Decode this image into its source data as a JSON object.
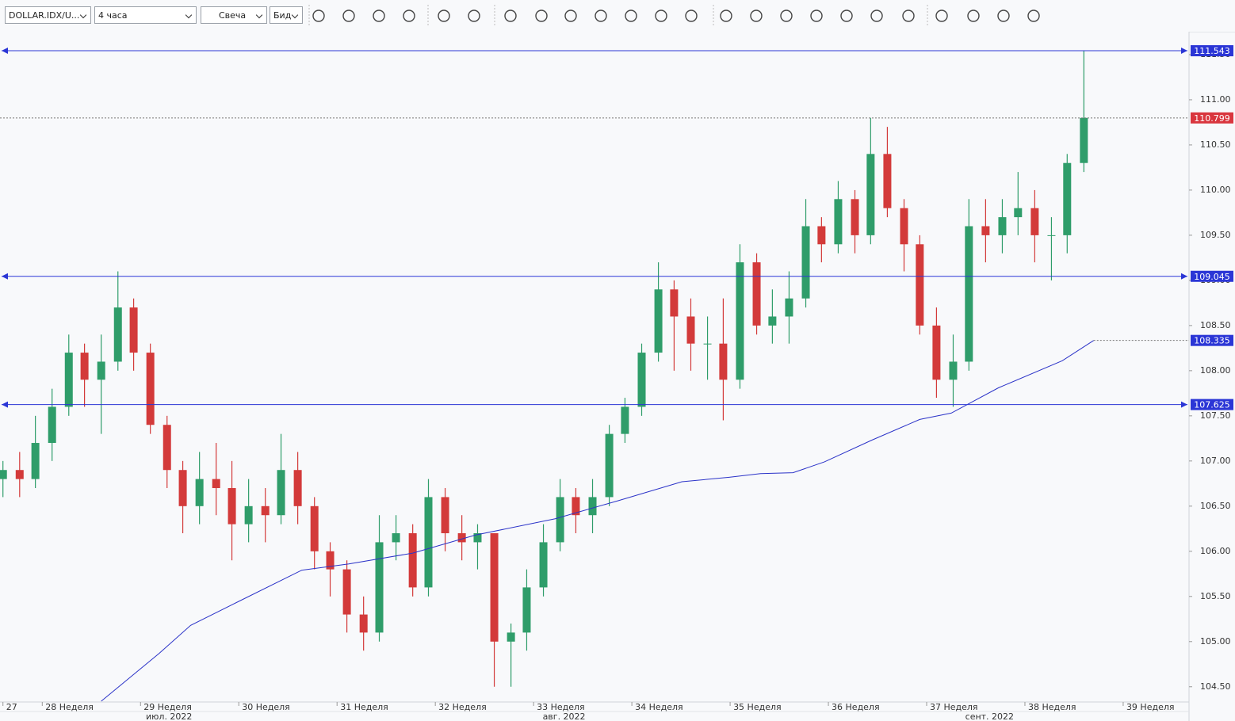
{
  "toolbar": {
    "symbol": "DOLLAR.IDX/U...",
    "timeframe": "4 часа",
    "chart_style": "Свеча",
    "price_side": "Бид"
  },
  "chart_data": {
    "type": "candlestick",
    "up_color": "#2f9d6a",
    "down_color": "#d33a3a",
    "ma_color": "#2b33c8",
    "level_color": "#2b36d6",
    "price_color": "#d9363e",
    "xlim": [
      27.57,
      39.67
    ],
    "xticks": [
      {
        "value": 27.6,
        "label": "27"
      },
      {
        "value": 28,
        "label": "28 Неделя"
      },
      {
        "value": 29,
        "label": "29 Неделя"
      },
      {
        "value": 30,
        "label": "30 Неделя"
      },
      {
        "value": 31,
        "label": "31 Неделя"
      },
      {
        "value": 32,
        "label": "32 Неделя"
      },
      {
        "value": 33,
        "label": "33 Неделя"
      },
      {
        "value": 34,
        "label": "34 Неделя"
      },
      {
        "value": 35,
        "label": "35 Неделя"
      },
      {
        "value": 36,
        "label": "36 Неделя"
      },
      {
        "value": 37,
        "label": "37 Неделя"
      },
      {
        "value": 38,
        "label": "38 Неделя"
      },
      {
        "value": 39,
        "label": "39 Неделя"
      }
    ],
    "months": [
      {
        "label": "июл. 2022",
        "x": 29.29
      },
      {
        "label": "авг. 2022",
        "x": 33.31
      },
      {
        "label": "сент. 2022",
        "x": 37.64
      }
    ],
    "ylim": [
      104.34,
      111.754
    ],
    "yticks": [
      {
        "value": 104.5,
        "label": "104.50"
      },
      {
        "value": 105,
        "label": "105.00"
      },
      {
        "value": 105.5,
        "label": "105.50"
      },
      {
        "value": 106,
        "label": "106.00"
      },
      {
        "value": 106.5,
        "label": "106.50"
      },
      {
        "value": 107,
        "label": "107.00"
      },
      {
        "value": 107.5,
        "label": "107.50"
      },
      {
        "value": 108,
        "label": "108.00"
      },
      {
        "value": 108.5,
        "label": "108.50"
      },
      {
        "value": 109,
        "label": "109.00"
      },
      {
        "value": 109.5,
        "label": "109.50"
      },
      {
        "value": 110,
        "label": "110.00"
      },
      {
        "value": 110.5,
        "label": "110.50"
      },
      {
        "value": 111,
        "label": "111.00"
      },
      {
        "value": 111.5,
        "label": "111.50"
      }
    ],
    "x": [
      27.6,
      27.77,
      27.93,
      28.1,
      28.27,
      28.43,
      28.6,
      28.77,
      28.93,
      29.1,
      29.27,
      29.43,
      29.6,
      29.77,
      29.93,
      30.1,
      30.27,
      30.43,
      30.6,
      30.77,
      30.93,
      31.1,
      31.27,
      31.43,
      31.6,
      31.77,
      31.93,
      32.1,
      32.27,
      32.43,
      32.6,
      32.77,
      32.93,
      33.1,
      33.27,
      33.43,
      33.6,
      33.77,
      33.93,
      34.1,
      34.27,
      34.43,
      34.6,
      34.77,
      34.93,
      35.1,
      35.27,
      35.43,
      35.6,
      35.77,
      35.93,
      36.1,
      36.27,
      36.43,
      36.6,
      36.77,
      36.93,
      37.1,
      37.27,
      37.43,
      37.6,
      37.77,
      37.93,
      38.1,
      38.27,
      38.43,
      38.6
    ],
    "candles": [
      [
        106.8,
        107.0,
        106.6,
        106.9
      ],
      [
        106.9,
        107.1,
        106.6,
        106.8
      ],
      [
        106.8,
        107.5,
        106.7,
        107.2
      ],
      [
        107.2,
        107.8,
        107.0,
        107.6
      ],
      [
        107.6,
        108.4,
        107.5,
        108.2
      ],
      [
        108.2,
        108.3,
        107.6,
        107.9
      ],
      [
        107.9,
        108.4,
        107.3,
        108.1
      ],
      [
        108.1,
        109.1,
        108.0,
        108.7
      ],
      [
        108.7,
        108.8,
        108.0,
        108.2
      ],
      [
        108.2,
        108.3,
        107.3,
        107.4
      ],
      [
        107.4,
        107.5,
        106.7,
        106.9
      ],
      [
        106.9,
        107.0,
        106.2,
        106.5
      ],
      [
        106.5,
        107.1,
        106.3,
        106.8
      ],
      [
        106.8,
        107.2,
        106.4,
        106.7
      ],
      [
        106.7,
        107.0,
        105.9,
        106.3
      ],
      [
        106.3,
        106.8,
        106.1,
        106.5
      ],
      [
        106.5,
        106.7,
        106.1,
        106.4
      ],
      [
        106.4,
        107.3,
        106.3,
        106.9
      ],
      [
        106.9,
        107.1,
        106.3,
        106.5
      ],
      [
        106.5,
        106.6,
        105.8,
        106.0
      ],
      [
        106.0,
        106.1,
        105.5,
        105.8
      ],
      [
        105.8,
        105.9,
        105.1,
        105.3
      ],
      [
        105.3,
        105.5,
        104.9,
        105.1
      ],
      [
        105.1,
        106.4,
        105.0,
        106.1
      ],
      [
        106.1,
        106.4,
        105.9,
        106.2
      ],
      [
        106.2,
        106.3,
        105.5,
        105.6
      ],
      [
        105.6,
        106.8,
        105.5,
        106.6
      ],
      [
        106.6,
        106.7,
        106.0,
        106.2
      ],
      [
        106.2,
        106.4,
        105.9,
        106.1
      ],
      [
        106.1,
        106.3,
        105.8,
        106.2
      ],
      [
        106.2,
        106.2,
        104.5,
        105.0
      ],
      [
        105.0,
        105.2,
        104.5,
        105.1
      ],
      [
        105.1,
        105.8,
        104.9,
        105.6
      ],
      [
        105.6,
        106.3,
        105.5,
        106.1
      ],
      [
        106.1,
        106.8,
        106.0,
        106.6
      ],
      [
        106.6,
        106.7,
        106.2,
        106.4
      ],
      [
        106.4,
        106.8,
        106.2,
        106.6
      ],
      [
        106.6,
        107.4,
        106.5,
        107.3
      ],
      [
        107.3,
        107.7,
        107.2,
        107.6
      ],
      [
        107.6,
        108.3,
        107.5,
        108.2
      ],
      [
        108.2,
        109.2,
        108.1,
        108.9
      ],
      [
        108.9,
        109.0,
        108.0,
        108.6
      ],
      [
        108.6,
        108.8,
        108.0,
        108.3
      ],
      [
        108.3,
        108.6,
        107.9,
        108.3
      ],
      [
        108.3,
        108.8,
        107.45,
        107.9
      ],
      [
        107.9,
        109.4,
        107.8,
        109.2
      ],
      [
        109.2,
        109.3,
        108.4,
        108.5
      ],
      [
        108.5,
        108.9,
        108.3,
        108.6
      ],
      [
        108.6,
        109.1,
        108.3,
        108.8
      ],
      [
        108.8,
        109.9,
        108.7,
        109.6
      ],
      [
        109.6,
        109.7,
        109.2,
        109.4
      ],
      [
        109.4,
        110.1,
        109.3,
        109.9
      ],
      [
        109.9,
        110.0,
        109.3,
        109.5
      ],
      [
        109.5,
        110.8,
        109.4,
        110.4
      ],
      [
        110.4,
        110.7,
        109.7,
        109.8
      ],
      [
        109.8,
        109.9,
        109.1,
        109.4
      ],
      [
        109.4,
        109.5,
        108.4,
        108.5
      ],
      [
        108.5,
        108.7,
        107.7,
        107.9
      ],
      [
        107.9,
        108.4,
        107.6,
        108.1
      ],
      [
        108.1,
        109.9,
        108.0,
        109.6
      ],
      [
        109.6,
        109.9,
        109.2,
        109.5
      ],
      [
        109.5,
        109.9,
        109.3,
        109.7
      ],
      [
        109.7,
        110.2,
        109.5,
        109.8
      ],
      [
        109.8,
        110.0,
        109.2,
        109.5
      ],
      [
        109.5,
        109.7,
        109.0,
        109.5
      ],
      [
        109.5,
        110.4,
        109.3,
        110.3
      ],
      [
        110.3,
        111.543,
        110.2,
        110.8
      ]
    ],
    "ma": {
      "x": [
        28.6,
        29.19,
        29.51,
        29.99,
        30.64,
        31.12,
        31.77,
        32.41,
        33.22,
        33.86,
        34.51,
        34.99,
        35.31,
        35.64,
        35.96,
        36.44,
        36.93,
        37.25,
        37.73,
        38.38,
        38.7
      ],
      "values": [
        104.34,
        104.87,
        105.18,
        105.44,
        105.79,
        105.86,
        105.98,
        106.18,
        106.36,
        106.56,
        106.77,
        106.82,
        106.86,
        106.87,
        106.99,
        107.23,
        107.46,
        107.53,
        107.81,
        108.11,
        108.335
      ]
    },
    "levels": [
      111.543,
      109.045,
      107.625
    ],
    "last_price": 110.799,
    "ma_last": 108.335
  }
}
